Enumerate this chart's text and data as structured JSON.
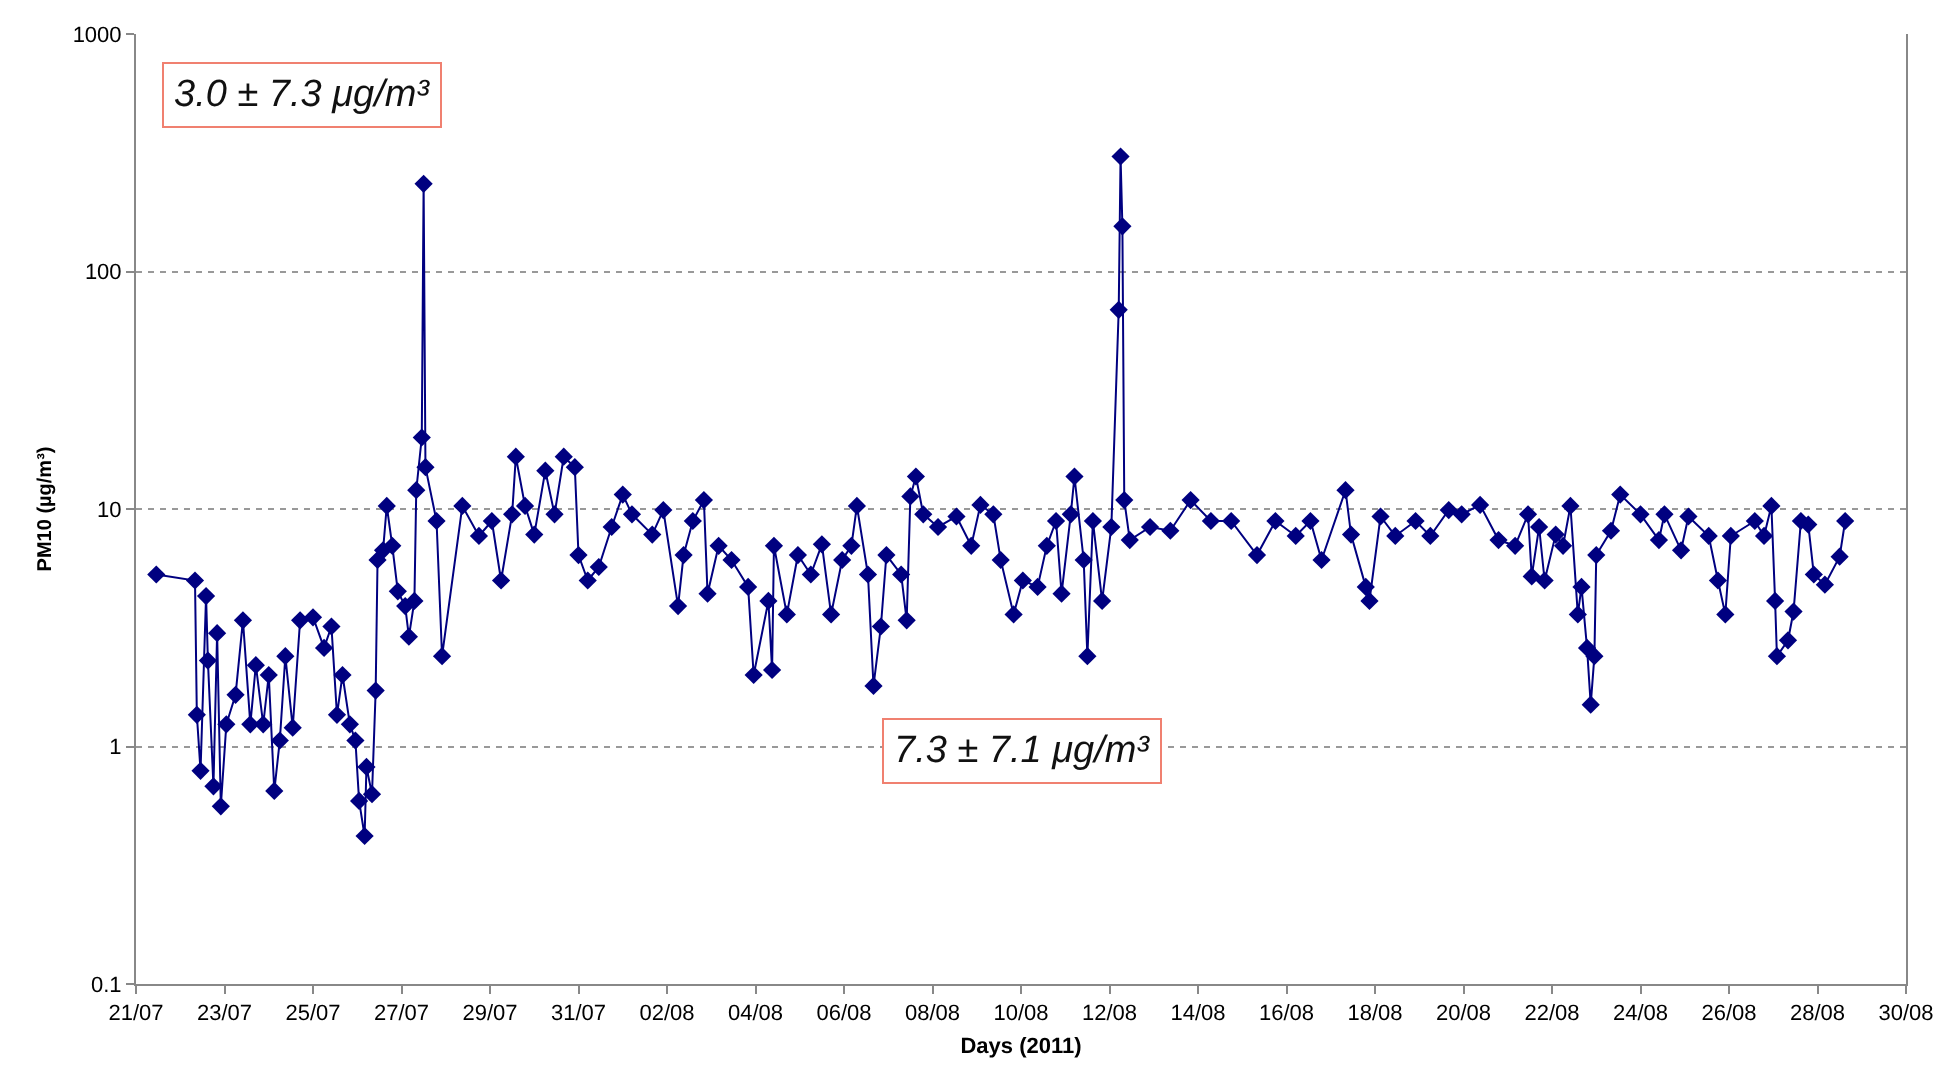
{
  "chart_data": {
    "type": "line",
    "xlabel": "Days (2011)",
    "ylabel": "PM10 (µg/m³)",
    "log": true,
    "grid": "y",
    "marker": "diamond",
    "line_style": "solid",
    "xlim": [
      "2011-07-21",
      "2011-08-30"
    ],
    "xticks": [
      {
        "value": "2011-07-21",
        "label": "21/07"
      },
      {
        "value": "2011-07-23",
        "label": "23/07"
      },
      {
        "value": "2011-07-25",
        "label": "25/07"
      },
      {
        "value": "2011-07-27",
        "label": "27/07"
      },
      {
        "value": "2011-07-29",
        "label": "29/07"
      },
      {
        "value": "2011-07-31",
        "label": "31/07"
      },
      {
        "value": "2011-08-02",
        "label": "02/08"
      },
      {
        "value": "2011-08-04",
        "label": "04/08"
      },
      {
        "value": "2011-08-06",
        "label": "06/08"
      },
      {
        "value": "2011-08-08",
        "label": "08/08"
      },
      {
        "value": "2011-08-10",
        "label": "10/08"
      },
      {
        "value": "2011-08-12",
        "label": "12/08"
      },
      {
        "value": "2011-08-14",
        "label": "14/08"
      },
      {
        "value": "2011-08-16",
        "label": "16/08"
      },
      {
        "value": "2011-08-18",
        "label": "18/08"
      },
      {
        "value": "2011-08-20",
        "label": "20/08"
      },
      {
        "value": "2011-08-22",
        "label": "22/08"
      },
      {
        "value": "2011-08-24",
        "label": "24/08"
      },
      {
        "value": "2011-08-26",
        "label": "26/08"
      },
      {
        "value": "2011-08-28",
        "label": "28/08"
      },
      {
        "value": "2011-08-30",
        "label": "30/08"
      }
    ],
    "ylim": [
      0.1,
      1000
    ],
    "yticks": [
      0.1,
      1,
      10,
      100,
      1000
    ],
    "annotations": [
      "3.0 ± 7.3 μg/m³",
      "7.3 ± 7.1 μg/m³"
    ],
    "x": [
      "2011-07-21T11:00",
      "2011-07-22T08:00",
      "2011-07-22T09:00",
      "2011-07-22T11:00",
      "2011-07-22T14:00",
      "2011-07-22T15:00",
      "2011-07-22T18:00",
      "2011-07-22T20:00",
      "2011-07-22T22:00",
      "2011-07-23T01:00",
      "2011-07-23T06:00",
      "2011-07-23T10:00",
      "2011-07-23T14:00",
      "2011-07-23T17:00",
      "2011-07-23T21:00",
      "2011-07-24T00:00",
      "2011-07-24T03:00",
      "2011-07-24T06:00",
      "2011-07-24T09:00",
      "2011-07-24T13:00",
      "2011-07-24T17:00",
      "2011-07-25T00:00",
      "2011-07-25T06:00",
      "2011-07-25T10:00",
      "2011-07-25T13:00",
      "2011-07-25T16:00",
      "2011-07-25T20:00",
      "2011-07-25T23:00",
      "2011-07-26T01:00",
      "2011-07-26T04:00",
      "2011-07-26T05:00",
      "2011-07-26T08:00",
      "2011-07-26T10:00",
      "2011-07-26T11:00",
      "2011-07-26T14:00",
      "2011-07-26T16:00",
      "2011-07-26T19:00",
      "2011-07-26T22:00",
      "2011-07-27T02:00",
      "2011-07-27T04:00",
      "2011-07-27T07:00",
      "2011-07-27T08:00",
      "2011-07-27T11:00",
      "2011-07-27T12:00",
      "2011-07-27T13:00",
      "2011-07-27T19:00",
      "2011-07-27T22:00",
      "2011-07-28T09:00",
      "2011-07-28T18:00",
      "2011-07-29T01:00",
      "2011-07-29T06:00",
      "2011-07-29T12:00",
      "2011-07-29T14:00",
      "2011-07-29T19:00",
      "2011-07-30T00:00",
      "2011-07-30T06:00",
      "2011-07-30T11:00",
      "2011-07-30T16:00",
      "2011-07-30T22:00",
      "2011-07-31T00:00",
      "2011-07-31T05:00",
      "2011-07-31T11:00",
      "2011-07-31T18:00",
      "2011-08-01T00:00",
      "2011-08-01T05:00",
      "2011-08-01T16:00",
      "2011-08-01T22:00",
      "2011-08-02T06:00",
      "2011-08-02T09:00",
      "2011-08-02T14:00",
      "2011-08-02T20:00",
      "2011-08-02T22:00",
      "2011-08-03T04:00",
      "2011-08-03T11:00",
      "2011-08-03T20:00",
      "2011-08-03T23:00",
      "2011-08-04T07:00",
      "2011-08-04T09:00",
      "2011-08-04T10:00",
      "2011-08-04T17:00",
      "2011-08-04T23:00",
      "2011-08-05T06:00",
      "2011-08-05T12:00",
      "2011-08-05T17:00",
      "2011-08-05T23:00",
      "2011-08-06T04:00",
      "2011-08-06T07:00",
      "2011-08-06T13:00",
      "2011-08-06T16:00",
      "2011-08-06T20:00",
      "2011-08-06T23:00",
      "2011-08-07T07:00",
      "2011-08-07T10:00",
      "2011-08-07T12:00",
      "2011-08-07T15:00",
      "2011-08-07T19:00",
      "2011-08-08T03:00",
      "2011-08-08T13:00",
      "2011-08-08T21:00",
      "2011-08-09T02:00",
      "2011-08-09T09:00",
      "2011-08-09T13:00",
      "2011-08-09T20:00",
      "2011-08-10T01:00",
      "2011-08-10T09:00",
      "2011-08-10T14:00",
      "2011-08-10T19:00",
      "2011-08-10T22:00",
      "2011-08-11T03:00",
      "2011-08-11T05:00",
      "2011-08-11T10:00",
      "2011-08-11T12:00",
      "2011-08-11T15:00",
      "2011-08-11T20:00",
      "2011-08-12T01:00",
      "2011-08-12T05:00",
      "2011-08-12T06:00",
      "2011-08-12T07:00",
      "2011-08-12T08:00",
      "2011-08-12T11:00",
      "2011-08-12T22:00",
      "2011-08-13T09:00",
      "2011-08-13T20:00",
      "2011-08-14T07:00",
      "2011-08-14T18:00",
      "2011-08-15T08:00",
      "2011-08-15T18:00",
      "2011-08-16T05:00",
      "2011-08-16T13:00",
      "2011-08-16T19:00",
      "2011-08-17T08:00",
      "2011-08-17T11:00",
      "2011-08-17T19:00",
      "2011-08-17T21:00",
      "2011-08-18T03:00",
      "2011-08-18T11:00",
      "2011-08-18T22:00",
      "2011-08-19T06:00",
      "2011-08-19T16:00",
      "2011-08-19T23:00",
      "2011-08-20T09:00",
      "2011-08-20T19:00",
      "2011-08-21T04:00",
      "2011-08-21T11:00",
      "2011-08-21T13:00",
      "2011-08-21T17:00",
      "2011-08-21T20:00",
      "2011-08-22T02:00",
      "2011-08-22T06:00",
      "2011-08-22T10:00",
      "2011-08-22T14:00",
      "2011-08-22T16:00",
      "2011-08-22T19:00",
      "2011-08-22T21:00",
      "2011-08-22T23:00",
      "2011-08-23T00:00",
      "2011-08-23T08:00",
      "2011-08-23T13:00",
      "2011-08-24T00:00",
      "2011-08-24T10:00",
      "2011-08-24T13:00",
      "2011-08-24T22:00",
      "2011-08-25T02:00",
      "2011-08-25T13:00",
      "2011-08-25T18:00",
      "2011-08-25T22:00",
      "2011-08-26T01:00",
      "2011-08-26T14:00",
      "2011-08-26T19:00",
      "2011-08-26T23:00",
      "2011-08-27T01:00",
      "2011-08-27T02:00",
      "2011-08-27T08:00",
      "2011-08-27T11:00",
      "2011-08-27T15:00",
      "2011-08-27T19:00",
      "2011-08-27T22:00",
      "2011-08-28T04:00",
      "2011-08-28T12:00",
      "2011-08-28T15:00"
    ],
    "series": [
      {
        "color": "#000080",
        "values": [
          5.3,
          5.0,
          1.36,
          0.79,
          4.3,
          2.3,
          0.68,
          3.0,
          0.56,
          1.24,
          1.65,
          3.4,
          1.24,
          2.2,
          1.24,
          2.0,
          0.65,
          1.06,
          2.4,
          1.2,
          3.4,
          3.5,
          2.6,
          3.2,
          1.36,
          2.0,
          1.24,
          1.06,
          0.59,
          0.42,
          0.82,
          0.63,
          1.72,
          6.1,
          6.7,
          10.3,
          7.0,
          4.5,
          3.9,
          2.9,
          4.1,
          12,
          20,
          234,
          15,
          8.9,
          2.4,
          10.3,
          7.7,
          8.9,
          5.0,
          9.5,
          16.6,
          10.3,
          7.8,
          14.5,
          9.5,
          16.6,
          15,
          6.4,
          5.0,
          5.7,
          8.4,
          11.5,
          9.5,
          7.8,
          9.9,
          3.9,
          6.4,
          8.9,
          10.9,
          4.4,
          7.0,
          6.1,
          4.7,
          2.0,
          4.1,
          2.1,
          7.0,
          3.6,
          6.4,
          5.3,
          7.1,
          3.6,
          6.1,
          7.0,
          10.3,
          5.3,
          1.8,
          3.2,
          6.4,
          5.3,
          3.4,
          11.3,
          13.7,
          9.5,
          8.4,
          9.3,
          7.0,
          10.4,
          9.5,
          6.1,
          3.6,
          5.0,
          4.7,
          7.0,
          8.9,
          4.4,
          9.5,
          13.7,
          6.1,
          2.4,
          8.9,
          4.1,
          8.4,
          69,
          305,
          155,
          10.9,
          7.4,
          8.4,
          8.1,
          10.9,
          8.9,
          8.9,
          6.4,
          8.9,
          7.7,
          8.9,
          6.1,
          12,
          7.8,
          4.7,
          4.1,
          9.3,
          7.7,
          8.9,
          7.7,
          9.9,
          9.5,
          10.4,
          7.4,
          7.0,
          9.5,
          5.2,
          8.4,
          5.0,
          7.8,
          7.0,
          10.3,
          3.6,
          4.7,
          2.6,
          1.5,
          2.4,
          6.4,
          8.1,
          11.5,
          9.5,
          7.4,
          9.5,
          6.7,
          9.3,
          7.7,
          5.0,
          3.6,
          7.7,
          8.9,
          7.7,
          10.3,
          4.1,
          2.4,
          2.8,
          3.7,
          8.9,
          8.6,
          5.3,
          4.8,
          6.3,
          8.9
        ]
      }
    ]
  }
}
